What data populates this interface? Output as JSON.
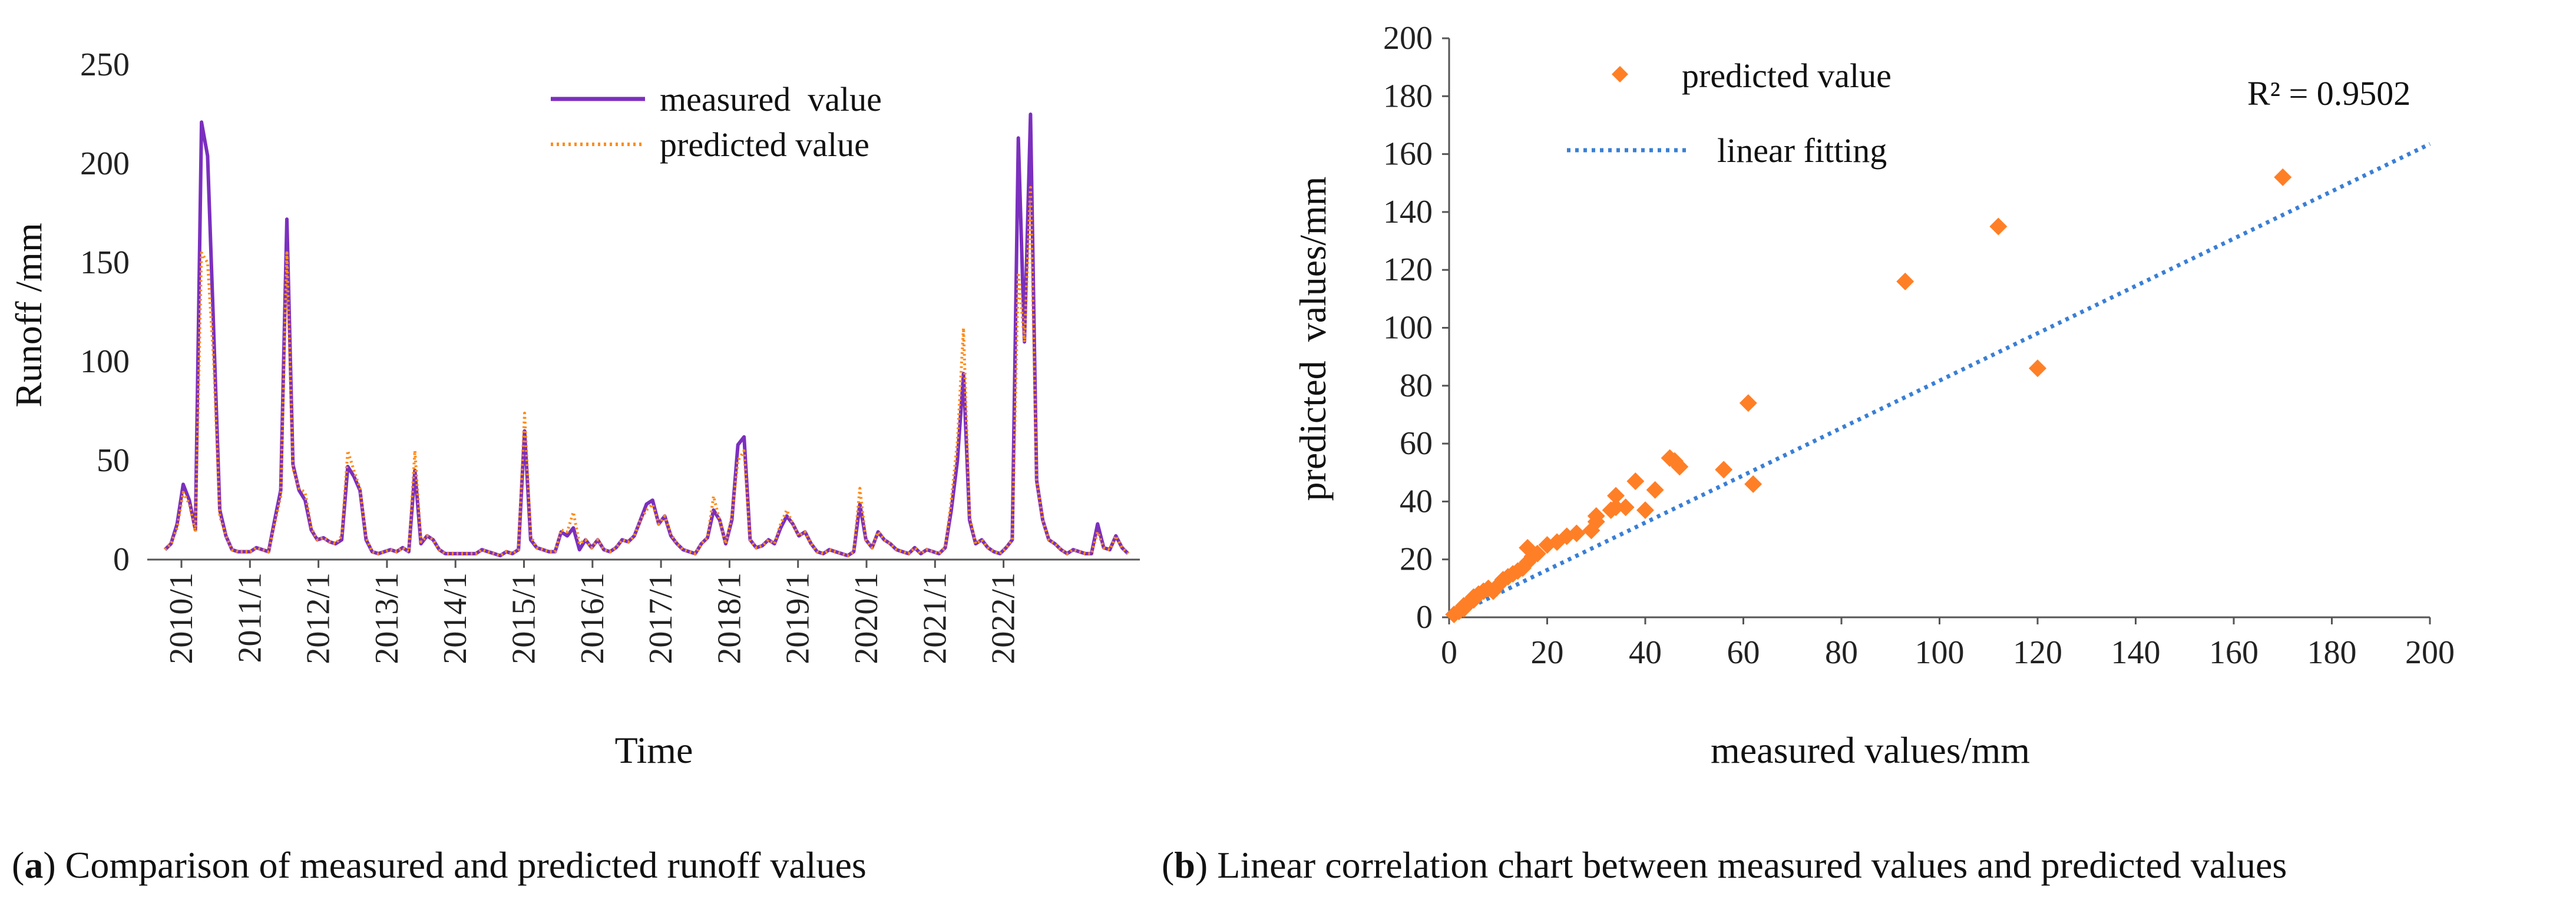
{
  "chart_data": [
    {
      "id": "a",
      "type": "line",
      "xlabel": "Time",
      "ylabel": "Runoff /mm",
      "ylim": [
        0,
        250
      ],
      "yticks": [
        0,
        50,
        100,
        150,
        200,
        250
      ],
      "xticks": [
        "2010/1",
        "2011/1",
        "2012/1",
        "2013/1",
        "2014/1",
        "2015/1",
        "2016/1",
        "2017/1",
        "2018/1",
        "2019/1",
        "2020/1",
        "2021/1",
        "2022/1"
      ],
      "legend": [
        "measured  value",
        "predicted value"
      ],
      "legend_position": "top-right",
      "series": [
        {
          "name": "measured  value",
          "color": "#7b2fbe",
          "style": "solid",
          "values": [
            5,
            8,
            18,
            38,
            30,
            15,
            221,
            204,
            115,
            25,
            12,
            5,
            4,
            4,
            4,
            6,
            5,
            4,
            20,
            35,
            172,
            48,
            35,
            30,
            15,
            10,
            11,
            9,
            8,
            10,
            47,
            42,
            35,
            10,
            4,
            3,
            4,
            5,
            4,
            6,
            4,
            45,
            8,
            12,
            10,
            5,
            3,
            3,
            3,
            3,
            3,
            3,
            5,
            4,
            3,
            2,
            4,
            3,
            5,
            65,
            10,
            6,
            5,
            4,
            4,
            14,
            12,
            16,
            5,
            10,
            6,
            10,
            5,
            4,
            6,
            10,
            9,
            12,
            20,
            28,
            30,
            18,
            22,
            12,
            8,
            5,
            4,
            3,
            8,
            11,
            25,
            20,
            8,
            20,
            58,
            62,
            10,
            6,
            7,
            10,
            8,
            16,
            22,
            18,
            12,
            14,
            8,
            4,
            3,
            5,
            4,
            3,
            2,
            4,
            28,
            10,
            6,
            14,
            10,
            8,
            5,
            4,
            3,
            6,
            3,
            5,
            4,
            3,
            6,
            25,
            50,
            94,
            20,
            8,
            10,
            6,
            4,
            3,
            6,
            10,
            213,
            110,
            225,
            40,
            20,
            10,
            8,
            5,
            3,
            5,
            4,
            3,
            3,
            18,
            6,
            5,
            12,
            6,
            3
          ]
        },
        {
          "name": "predicted value",
          "color": "#ff8c1a",
          "style": "dotted",
          "values": [
            5,
            8,
            16,
            34,
            28,
            14,
            155,
            150,
            100,
            22,
            12,
            5,
            4,
            4,
            4,
            6,
            5,
            4,
            18,
            32,
            155,
            46,
            36,
            34,
            16,
            10,
            11,
            9,
            8,
            12,
            55,
            45,
            36,
            11,
            4,
            3,
            4,
            5,
            4,
            6,
            4,
            55,
            9,
            12,
            10,
            5,
            3,
            3,
            3,
            3,
            3,
            3,
            5,
            4,
            3,
            2,
            4,
            3,
            5,
            74,
            12,
            6,
            5,
            4,
            4,
            15,
            14,
            24,
            8,
            10,
            6,
            10,
            5,
            4,
            6,
            10,
            9,
            12,
            20,
            25,
            28,
            18,
            22,
            13,
            8,
            5,
            4,
            3,
            8,
            11,
            32,
            20,
            8,
            22,
            50,
            55,
            10,
            6,
            7,
            10,
            8,
            18,
            25,
            18,
            12,
            14,
            8,
            4,
            3,
            5,
            4,
            3,
            2,
            4,
            36,
            10,
            6,
            14,
            10,
            8,
            5,
            4,
            3,
            6,
            3,
            5,
            4,
            3,
            6,
            30,
            60,
            117,
            22,
            8,
            10,
            6,
            4,
            3,
            6,
            10,
            145,
            110,
            188,
            40,
            20,
            10,
            8,
            5,
            3,
            5,
            4,
            3,
            3,
            14,
            6,
            5,
            12,
            6,
            3
          ]
        }
      ]
    },
    {
      "id": "b",
      "type": "scatter",
      "xlabel": "measured values/mm",
      "ylabel": "predicted  values/mm",
      "xlim": [
        0,
        200
      ],
      "ylim": [
        0,
        200
      ],
      "xticks": [
        0,
        20,
        40,
        60,
        80,
        100,
        120,
        140,
        160,
        180,
        200
      ],
      "yticks": [
        0,
        20,
        40,
        60,
        80,
        100,
        120,
        140,
        160,
        180,
        200
      ],
      "legend": [
        "predicted value",
        "linear fitting"
      ],
      "legend_position": "top-left",
      "annotation": "R² = 0.9502",
      "series": [
        {
          "name": "predicted value",
          "color": "#ff7f27",
          "marker": "diamond",
          "points": [
            [
              1,
              1
            ],
            [
              2,
              2
            ],
            [
              3,
              3
            ],
            [
              3,
              4
            ],
            [
              4,
              5
            ],
            [
              5,
              6
            ],
            [
              5,
              7
            ],
            [
              6,
              8
            ],
            [
              7,
              9
            ],
            [
              8,
              10
            ],
            [
              9,
              9
            ],
            [
              10,
              11
            ],
            [
              11,
              13
            ],
            [
              12,
              14
            ],
            [
              13,
              15
            ],
            [
              14,
              16
            ],
            [
              15,
              17
            ],
            [
              16,
              19
            ],
            [
              17,
              21
            ],
            [
              16,
              24
            ],
            [
              18,
              22
            ],
            [
              20,
              25
            ],
            [
              22,
              26
            ],
            [
              24,
              28
            ],
            [
              26,
              29
            ],
            [
              29,
              30
            ],
            [
              30,
              33
            ],
            [
              30,
              35
            ],
            [
              33,
              37
            ],
            [
              34,
              38
            ],
            [
              34,
              42
            ],
            [
              36,
              38
            ],
            [
              38,
              47
            ],
            [
              40,
              37
            ],
            [
              42,
              44
            ],
            [
              45,
              55
            ],
            [
              46,
              54
            ],
            [
              47,
              52
            ],
            [
              56,
              51
            ],
            [
              61,
              74
            ],
            [
              62,
              46
            ],
            [
              93,
              116
            ],
            [
              112,
              135
            ],
            [
              120,
              86
            ],
            [
              170,
              152
            ]
          ]
        },
        {
          "name": "linear fitting",
          "color": "#3a7fd5",
          "style": "dotted",
          "line": [
            [
              0,
              0
            ],
            [
              200,
              163.5
            ]
          ]
        }
      ]
    }
  ],
  "captions": {
    "a_label": "a",
    "a_text": ") Comparison of measured and predicted runoff values",
    "b_label": "b",
    "b_text": ") Linear correlation chart between measured values and predicted values"
  }
}
